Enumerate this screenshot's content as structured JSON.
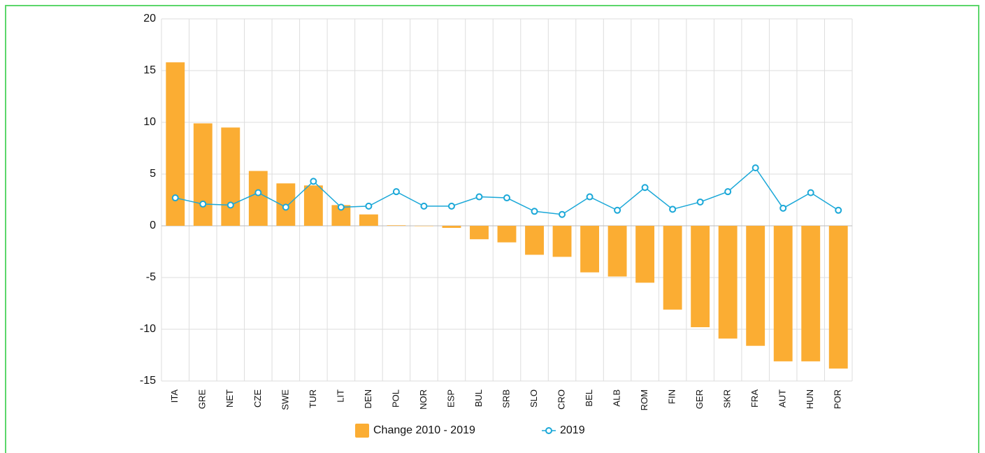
{
  "chart_data": {
    "type": "bar",
    "categories": [
      "ITA",
      "GRE",
      "NET",
      "CZE",
      "SWE",
      "TUR",
      "LIT",
      "DEN",
      "POL",
      "NOR",
      "ESP",
      "BUL",
      "SRB",
      "SLO",
      "CRO",
      "BEL",
      "ALB",
      "ROM",
      "FIN",
      "GER",
      "SKR",
      "FRA",
      "AUT",
      "HUN",
      "POR"
    ],
    "series": [
      {
        "name": "Change 2010 - 2019",
        "type": "bar",
        "color": "#fbad33",
        "values": [
          15.8,
          9.9,
          9.5,
          5.3,
          4.1,
          3.9,
          2.0,
          1.1,
          0.05,
          0.0,
          -0.2,
          -1.3,
          -1.6,
          -2.8,
          -3.0,
          -4.5,
          -4.9,
          -5.5,
          -8.1,
          -9.8,
          -10.9,
          -11.6,
          -13.1,
          -13.1,
          -13.8
        ]
      },
      {
        "name": "2019",
        "type": "line",
        "color": "#1ba8d8",
        "values": [
          2.7,
          2.1,
          2.0,
          3.2,
          1.8,
          4.3,
          1.8,
          1.9,
          3.3,
          1.9,
          1.9,
          2.8,
          2.7,
          1.4,
          1.1,
          2.8,
          1.5,
          3.7,
          1.6,
          2.3,
          3.3,
          5.6,
          1.7,
          3.2,
          1.5
        ]
      }
    ],
    "ylim": [
      -15,
      20
    ],
    "yticks": [
      -15,
      -10,
      -5,
      0,
      5,
      10,
      15,
      20
    ],
    "grid": true,
    "legend": "bottom"
  }
}
